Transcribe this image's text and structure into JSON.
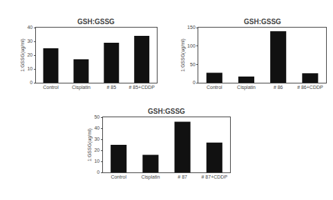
{
  "chart_data": [
    {
      "type": "bar",
      "title": "GSH:GSSG",
      "categories": [
        "Control",
        "Cisplatin",
        "# 85",
        "# 85+CDDP"
      ],
      "values": [
        25,
        17,
        29,
        34
      ],
      "color": "#111111",
      "ylim": [
        0,
        40
      ],
      "yticks": [
        0,
        10,
        20,
        30,
        40
      ],
      "ylabel": "1:GSSG(ug/ml)",
      "grid": false
    },
    {
      "type": "bar",
      "title": "GSH:GSSG",
      "categories": [
        "Control",
        "Cisplatin",
        "# 86",
        "# 86+CDDP"
      ],
      "values": [
        27,
        17,
        140,
        26
      ],
      "color": "#111111",
      "ylim": [
        0,
        150
      ],
      "yticks": [
        0,
        50,
        100,
        150
      ],
      "ylabel": "1:GSSG(ug/ml)",
      "grid": false
    },
    {
      "type": "bar",
      "title": "GSH:GSSG",
      "categories": [
        "Control",
        "Cisplatin",
        "# 87",
        "# 87+CDDP"
      ],
      "values": [
        25,
        16,
        46,
        27
      ],
      "color": "#111111",
      "ylim": [
        0,
        50
      ],
      "yticks": [
        0,
        10,
        20,
        30,
        40,
        50
      ],
      "ylabel": "1:GSSG(ug/ml)",
      "grid": false
    }
  ]
}
